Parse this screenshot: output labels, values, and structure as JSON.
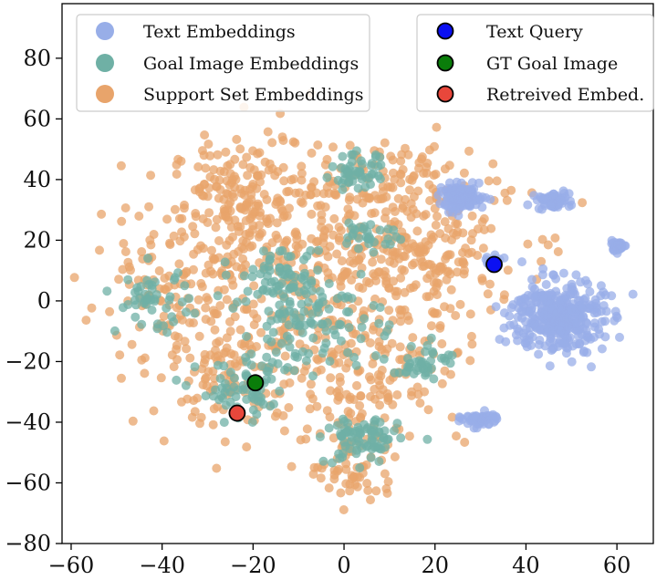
{
  "chart_data": {
    "type": "scatter",
    "title": "",
    "xlabel": "",
    "ylabel": "",
    "xlim": [
      -62,
      68
    ],
    "ylim": [
      -80,
      98
    ],
    "xticks": [
      -60,
      -40,
      -20,
      0,
      20,
      40,
      60
    ],
    "yticks": [
      -80,
      -60,
      -40,
      -20,
      0,
      20,
      40,
      60,
      80
    ],
    "xtick_labels": [
      "−60",
      "−40",
      "−20",
      "0",
      "20",
      "40",
      "60"
    ],
    "ytick_labels": [
      "−80",
      "−60",
      "−40",
      "−20",
      "0",
      "20",
      "40",
      "60",
      "80"
    ],
    "grid": false,
    "series": [
      {
        "name": "Support Set Embeddings",
        "color": "#e8a46b",
        "kind": "cloud",
        "clusters": [
          {
            "cx": -22,
            "cy": 32,
            "sx": 8,
            "sy": 10,
            "n": 180
          },
          {
            "cx": 0,
            "cy": 15,
            "sx": 18,
            "sy": 18,
            "n": 420
          },
          {
            "cx": -40,
            "cy": 0,
            "sx": 9,
            "sy": 10,
            "n": 100
          },
          {
            "cx": -25,
            "cy": -22,
            "sx": 9,
            "sy": 10,
            "n": 120
          },
          {
            "cx": 5,
            "cy": -25,
            "sx": 11,
            "sy": 12,
            "n": 150
          },
          {
            "cx": 2,
            "cy": -55,
            "sx": 5,
            "sy": 6,
            "n": 60
          },
          {
            "cx": 20,
            "cy": 12,
            "sx": 7,
            "sy": 10,
            "n": 80
          },
          {
            "cx": 10,
            "cy": 40,
            "sx": 8,
            "sy": 6,
            "n": 70
          }
        ]
      },
      {
        "name": "Goal Image Embeddings",
        "color": "#6fb0a5",
        "kind": "cloud",
        "clusters": [
          {
            "cx": 3,
            "cy": 42,
            "sx": 3,
            "sy": 3,
            "n": 50
          },
          {
            "cx": -42,
            "cy": 0,
            "sx": 4,
            "sy": 5,
            "n": 50
          },
          {
            "cx": -22,
            "cy": -30,
            "sx": 5,
            "sy": 5,
            "n": 70
          },
          {
            "cx": 4,
            "cy": -46,
            "sx": 4,
            "sy": 4,
            "n": 80
          },
          {
            "cx": -8,
            "cy": -5,
            "sx": 8,
            "sy": 9,
            "n": 130
          },
          {
            "cx": 18,
            "cy": -20,
            "sx": 3,
            "sy": 3,
            "n": 40
          },
          {
            "cx": 6,
            "cy": 22,
            "sx": 3,
            "sy": 3,
            "n": 30
          },
          {
            "cx": -14,
            "cy": 8,
            "sx": 4,
            "sy": 4,
            "n": 40
          }
        ]
      },
      {
        "name": "Text Embeddings",
        "color": "#98aee8",
        "kind": "cloud",
        "clusters": [
          {
            "cx": 26,
            "cy": 34,
            "sx": 2.5,
            "sy": 2,
            "n": 120
          },
          {
            "cx": 46,
            "cy": 33,
            "sx": 1.8,
            "sy": 1.4,
            "n": 60
          },
          {
            "cx": 60,
            "cy": 18,
            "sx": 1,
            "sy": 0.8,
            "n": 30
          },
          {
            "cx": 47,
            "cy": -5,
            "sx": 5,
            "sy": 6,
            "n": 350
          },
          {
            "cx": 30,
            "cy": -39,
            "sx": 2,
            "sy": 1.2,
            "n": 50
          },
          {
            "cx": 32,
            "cy": 13,
            "sx": 0.8,
            "sy": 0.8,
            "n": 10
          }
        ]
      }
    ],
    "highlights": [
      {
        "name": "Text Query",
        "x": 33,
        "y": 12,
        "color": "#0b10f2"
      },
      {
        "name": "GT Goal Image",
        "x": -19.5,
        "y": -27,
        "color": "#0a7d0a"
      },
      {
        "name": "Retreived Embed.",
        "x": -23.5,
        "y": -37,
        "color": "#e8473b"
      }
    ],
    "legend": {
      "left": {
        "placement": "top-left",
        "entries": [
          {
            "label": "Text Embeddings",
            "color": "#98aee8"
          },
          {
            "label": "Goal Image Embeddings",
            "color": "#6fb0a5"
          },
          {
            "label": "Support Set Embeddings",
            "color": "#e8a46b"
          }
        ]
      },
      "right": {
        "placement": "top-right",
        "entries": [
          {
            "label": "Text Query",
            "color": "#0b10f2"
          },
          {
            "label": "GT Goal Image",
            "color": "#0a7d0a"
          },
          {
            "label": "Retreived Embed.",
            "color": "#e8473b"
          }
        ]
      }
    }
  }
}
